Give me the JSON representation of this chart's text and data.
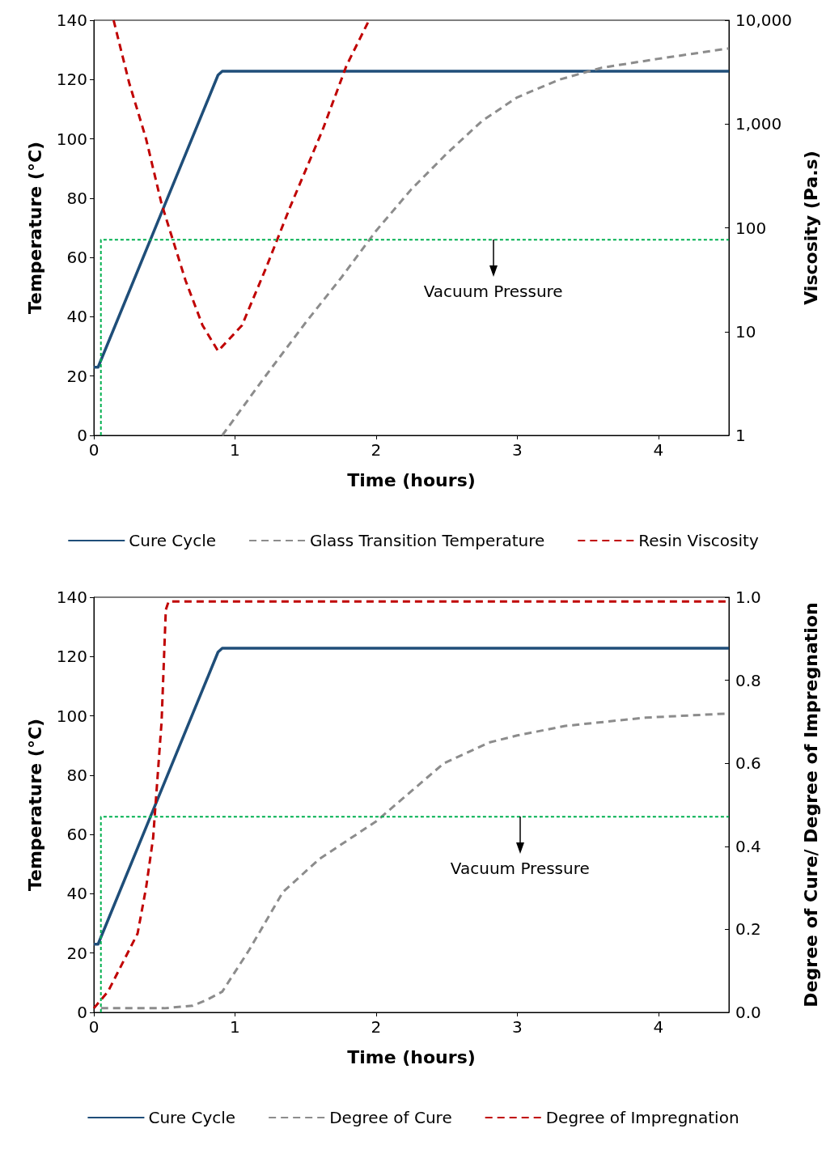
{
  "chart_data": [
    {
      "type": "line",
      "xlabel": "Time (hours)",
      "ylabel": "Temperature (°C)",
      "y2label": "Viscosity (Pa.s)",
      "xlim": [
        0,
        4.5
      ],
      "xticks": [
        0,
        1,
        2,
        3,
        4
      ],
      "ylim": [
        0,
        140
      ],
      "yticks": [
        0,
        20,
        40,
        60,
        80,
        100,
        120,
        140
      ],
      "y2lim": [
        1,
        10000
      ],
      "y2ticks": [
        1,
        10,
        100,
        {
          "value": 1000,
          "label": "1,000"
        },
        {
          "value": 10000,
          "label": "10,000"
        }
      ],
      "log": "y2",
      "grid": false,
      "legend": "bottom",
      "marker": "none",
      "annotations": [
        {
          "text": "Vacuum Pressure",
          "x": 2.83,
          "y": 66
        }
      ],
      "series": [
        {
          "name": "Cure Cycle",
          "color": "#1f4e79",
          "line_style": "solid",
          "x": [
            0,
            0.03,
            0.88,
            0.91,
            4.5
          ],
          "values": [
            23,
            23,
            121.5,
            122.8,
            122.8
          ]
        },
        {
          "name": "Glass Transition Temperature",
          "color": "#8c8c8c",
          "line_style": "dashed",
          "x": [
            0.91,
            1.2,
            1.5,
            1.75,
            2,
            2.25,
            2.5,
            2.75,
            3,
            3.3,
            3.6,
            4,
            4.5
          ],
          "values": [
            0,
            19,
            38,
            53,
            69,
            83,
            95,
            106,
            114,
            120,
            124,
            127,
            130.5
          ]
        },
        {
          "name": "Resin Viscosity",
          "color": "#c00000",
          "line_style": "dashed",
          "axis": "y2",
          "x": [
            0.14,
            0.25,
            0.37,
            0.48,
            0.65,
            0.77,
            0.88,
            1.05,
            1.22,
            1.39,
            1.62,
            1.79,
            1.95
          ],
          "values": [
            10000,
            2500,
            720,
            170,
            31,
            11.5,
            6.5,
            11.5,
            41,
            158,
            870,
            3650,
            10000
          ]
        },
        {
          "color": "#00b050",
          "line_style": "dotted",
          "x": [
            0.05,
            0.05,
            4.5
          ],
          "values": [
            0,
            66,
            66
          ]
        }
      ]
    },
    {
      "type": "line",
      "xlabel": "Time (hours)",
      "ylabel": "Temperature (°C)",
      "y2label": "Degree of Cure/ Degree of Impregnation",
      "xlim": [
        0,
        4.5
      ],
      "xticks": [
        0,
        1,
        2,
        3,
        4
      ],
      "ylim": [
        0,
        140
      ],
      "yticks": [
        0,
        20,
        40,
        60,
        80,
        100,
        120,
        140
      ],
      "y2lim": [
        0,
        1
      ],
      "y2ticks": [
        {
          "value": 0,
          "label": "0.0"
        },
        0.2,
        0.4,
        0.6,
        0.8,
        {
          "value": 1,
          "label": "1.0"
        }
      ],
      "grid": false,
      "legend": "bottom",
      "marker": "none",
      "annotations": [
        {
          "text": "Vacuum Pressure",
          "x": 3.02,
          "y": 66
        }
      ],
      "series": [
        {
          "name": "Cure Cycle",
          "color": "#1f4e79",
          "line_style": "solid",
          "x": [
            0,
            0.03,
            0.88,
            0.91,
            4.5
          ],
          "values": [
            23,
            23,
            121.5,
            122.8,
            122.8
          ]
        },
        {
          "name": "Degree of Cure",
          "color": "#8c8c8c",
          "line_style": "dashed",
          "axis": "y2",
          "x": [
            0.05,
            0.5,
            0.7,
            0.8,
            0.91,
            1.1,
            1.34,
            1.6,
            2,
            2.48,
            2.8,
            3,
            3.34,
            3.91,
            4.5
          ],
          "values": [
            0.01,
            0.01,
            0.016,
            0.03,
            0.05,
            0.15,
            0.29,
            0.37,
            0.46,
            0.6,
            0.65,
            0.667,
            0.69,
            0.71,
            0.72
          ]
        },
        {
          "name": "Degree of Impregnation",
          "color": "#c00000",
          "line_style": "dashed",
          "axis": "y2",
          "x": [
            0,
            0.1,
            0.19,
            0.31,
            0.37,
            0.42,
            0.48,
            0.51,
            0.53,
            4.5
          ],
          "values": [
            0.01,
            0.05,
            0.11,
            0.19,
            0.3,
            0.42,
            0.7,
            0.97,
            0.99,
            0.99
          ]
        },
        {
          "color": "#00b050",
          "line_style": "dotted",
          "x": [
            0.05,
            0.05,
            4.5
          ],
          "values": [
            0,
            66,
            66
          ]
        }
      ]
    }
  ]
}
